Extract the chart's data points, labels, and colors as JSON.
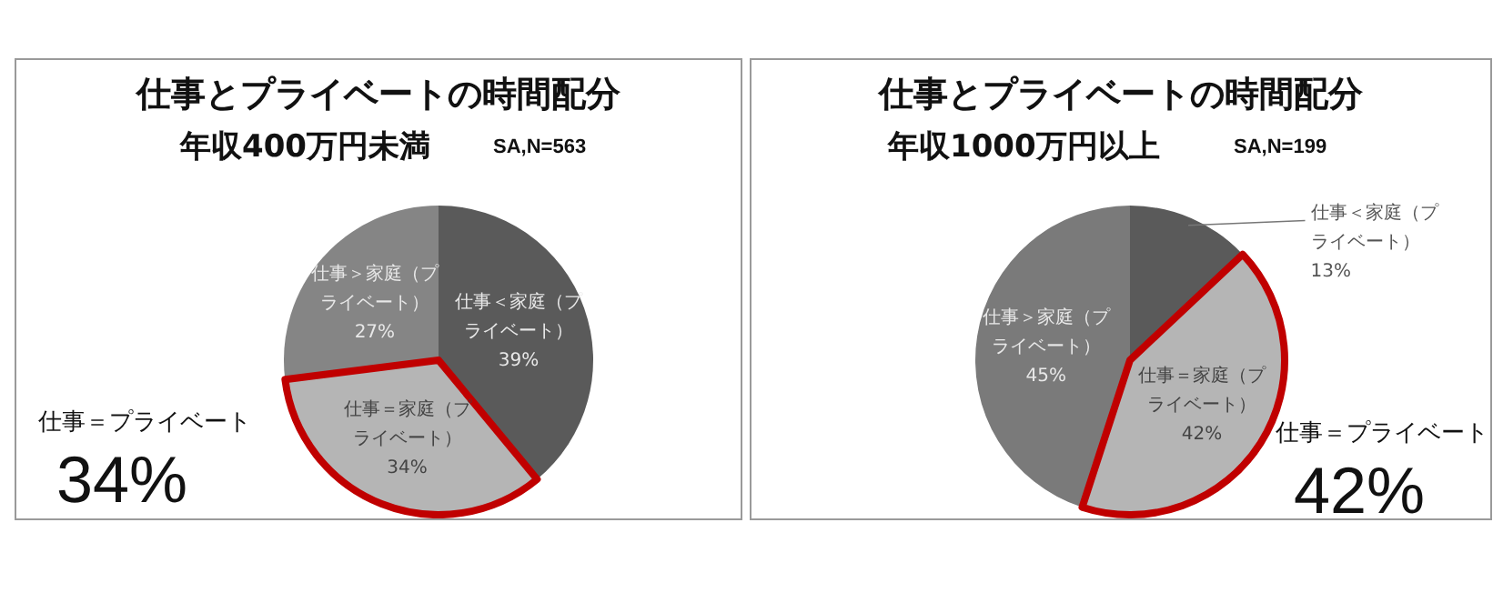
{
  "chart_data": [
    {
      "type": "pie",
      "title": "仕事とプライベートの時間配分",
      "subtitle": "年収400万円未満",
      "categories": [
        "仕事＜家庭（プライベート）",
        "仕事＝家庭（プライベート）",
        "仕事＞家庭（プライベート）"
      ],
      "values": [
        39,
        34,
        27
      ],
      "value_labels": [
        "39%",
        "34%",
        "27%"
      ],
      "colors": [
        "#5a5a5a",
        "#b5b5b5",
        "#858585"
      ],
      "annotations": [
        "SA,N=563",
        {
          "text": "仕事＝プライベート",
          "x": "仕事＝家庭（プライベート）"
        },
        {
          "text": "34%",
          "x": "仕事＝家庭（プライベート）"
        }
      ]
    },
    {
      "type": "pie",
      "title": "仕事とプライベートの時間配分",
      "subtitle": "年収1000万円以上",
      "categories": [
        "仕事＜家庭（プライベート）",
        "仕事＝家庭（プライベート）",
        "仕事＞家庭（プライベート）"
      ],
      "values": [
        13,
        42,
        45
      ],
      "value_labels": [
        "13%",
        "42%",
        "45%"
      ],
      "colors": [
        "#5a5a5a",
        "#b5b5b5",
        "#7a7a7a"
      ],
      "annotations": [
        "SA,N=199",
        {
          "text": "仕事＝プライベート",
          "x": "仕事＝家庭（プライベート）"
        },
        {
          "text": "42%",
          "x": "仕事＝家庭（プライベート）"
        }
      ]
    }
  ]
}
